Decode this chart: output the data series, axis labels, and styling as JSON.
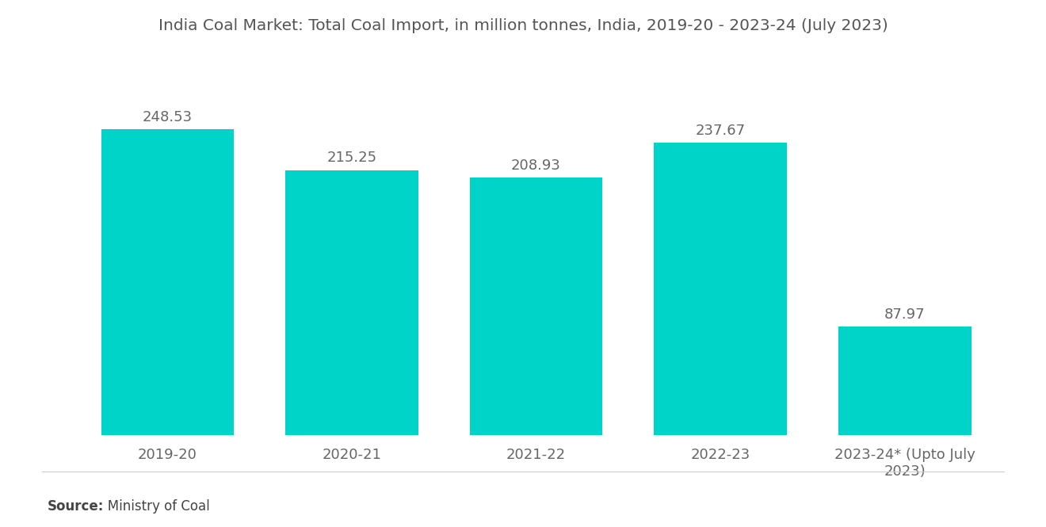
{
  "title": "India Coal Market: Total Coal Import, in million tonnes, India, 2019-20 - 2023-24 (July 2023)",
  "categories": [
    "2019-20",
    "2020-21",
    "2021-22",
    "2022-23",
    "2023-24* (Upto July\n2023)"
  ],
  "values": [
    248.53,
    215.25,
    208.93,
    237.67,
    87.97
  ],
  "bar_color": "#00D4C8",
  "value_labels": [
    "248.53",
    "215.25",
    "208.93",
    "237.67",
    "87.97"
  ],
  "source_bold": "Source:",
  "source_normal": "   Ministry of Coal",
  "background_color": "#ffffff",
  "title_color": "#555555",
  "bar_label_color": "#666666",
  "xtick_color": "#666666",
  "title_fontsize": 14.5,
  "bar_label_fontsize": 13,
  "xtick_fontsize": 13,
  "source_fontsize": 12,
  "ylim": [
    0,
    300
  ],
  "bar_width": 0.72
}
